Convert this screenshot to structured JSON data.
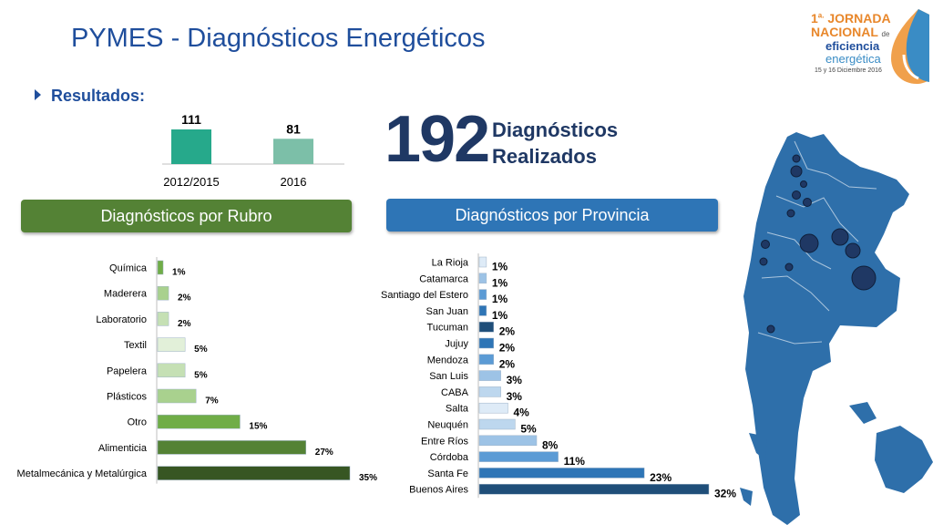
{
  "header": {
    "title": "PYMES - Diagnósticos Energéticos",
    "bullet": "Resultados:"
  },
  "logo": {
    "line1_num": "1",
    "line1_sup": "a.",
    "line1_text": "JORNADA",
    "line2_text": "NACIONAL",
    "line2_small": "de",
    "line3": "eficiencia",
    "line4": "energética",
    "line5": "15 y 16 Diciembre 2016"
  },
  "summary": {
    "total": "192",
    "label_line1": "Diagnósticos",
    "label_line2": "Realizados"
  },
  "banners": {
    "rubro": "Diagnósticos por Rubro",
    "provincia": "Diagnósticos por Provincia"
  },
  "chart_data": [
    {
      "type": "bar",
      "categories": [
        "2012/2015",
        "2016"
      ],
      "values": [
        111,
        81
      ],
      "value_labels": [
        "111",
        "81"
      ],
      "colors": [
        "#26a98b",
        "#7cbfa8"
      ]
    },
    {
      "type": "bar",
      "orientation": "horizontal",
      "categories": [
        "Química",
        "Maderera",
        "Laboratorio",
        "Textil",
        "Papelera",
        "Plásticos",
        "Otro",
        "Alimenticia",
        "Metalmecánica y Metalúrgica"
      ],
      "values": [
        1,
        2,
        2,
        5,
        5,
        7,
        15,
        27,
        35
      ],
      "value_labels": [
        "1%",
        "2%",
        "2%",
        "5%",
        "5%",
        "7%",
        "15%",
        "27%",
        "35%"
      ],
      "unit": "%",
      "colors": [
        "#70ad47",
        "#a9d18e",
        "#c5e0b4",
        "#e2f0d9",
        "#c5e0b4",
        "#a9d18e",
        "#70ad47",
        "#548235",
        "#375623"
      ]
    },
    {
      "type": "bar",
      "orientation": "horizontal",
      "categories": [
        "La Rioja",
        "Catamarca",
        "Santiago del Estero",
        "San Juan",
        "Tucuman",
        "Jujuy",
        "Mendoza",
        "San Luis",
        "CABA",
        "Salta",
        "Neuquén",
        "Entre Ríos",
        "Córdoba",
        "Santa Fe",
        "Buenos Aires"
      ],
      "values": [
        1,
        1,
        1,
        1,
        2,
        2,
        2,
        3,
        3,
        4,
        5,
        8,
        11,
        23,
        32
      ],
      "value_labels": [
        "1%",
        "1%",
        "1%",
        "1%",
        "2%",
        "2%",
        "2%",
        "3%",
        "3%",
        "4%",
        "5%",
        "8%",
        "11%",
        "23%",
        "32%"
      ],
      "unit": "%",
      "colors": [
        "#deebf7",
        "#9dc3e6",
        "#5b9bd5",
        "#2e75b6",
        "#1f4e79",
        "#2e75b6",
        "#5b9bd5",
        "#9dc3e6",
        "#bdd7ee",
        "#deebf7",
        "#bdd7ee",
        "#9dc3e6",
        "#5b9bd5",
        "#2e75b6",
        "#1f4e79"
      ]
    }
  ]
}
